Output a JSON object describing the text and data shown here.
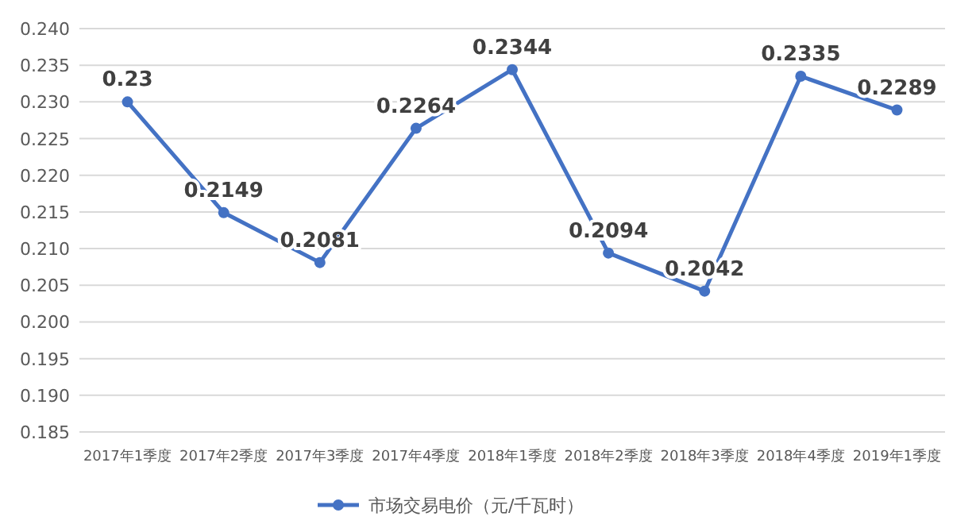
{
  "chart_data": {
    "type": "line",
    "categories": [
      "2017年1季度",
      "2017年2季度",
      "2017年3季度",
      "2017年4季度",
      "2018年1季度",
      "2018年2季度",
      "2018年3季度",
      "2018年4季度",
      "2019年1季度"
    ],
    "series": [
      {
        "name": "市场交易电价（元/千瓦时）",
        "color": "#4472c4",
        "values": [
          0.23,
          0.2149,
          0.2081,
          0.2264,
          0.2344,
          0.2094,
          0.2042,
          0.2335,
          0.2289
        ]
      }
    ],
    "ylim": [
      0.185,
      0.24
    ],
    "yticks": [
      {
        "value": 0.185,
        "label": "0.185"
      },
      {
        "value": 0.19,
        "label": "0.190"
      },
      {
        "value": 0.195,
        "label": "0.195"
      },
      {
        "value": 0.2,
        "label": "0.200"
      },
      {
        "value": 0.205,
        "label": "0.205"
      },
      {
        "value": 0.21,
        "label": "0.210"
      },
      {
        "value": 0.215,
        "label": "0.215"
      },
      {
        "value": 0.22,
        "label": "0.220"
      },
      {
        "value": 0.225,
        "label": "0.225"
      },
      {
        "value": 0.23,
        "label": "0.230"
      },
      {
        "value": 0.235,
        "label": "0.235"
      },
      {
        "value": 0.24,
        "label": "0.240"
      }
    ],
    "grid": "y",
    "legend": "bottom",
    "marker": "circle",
    "line_style": "solid",
    "data_labels": true
  }
}
